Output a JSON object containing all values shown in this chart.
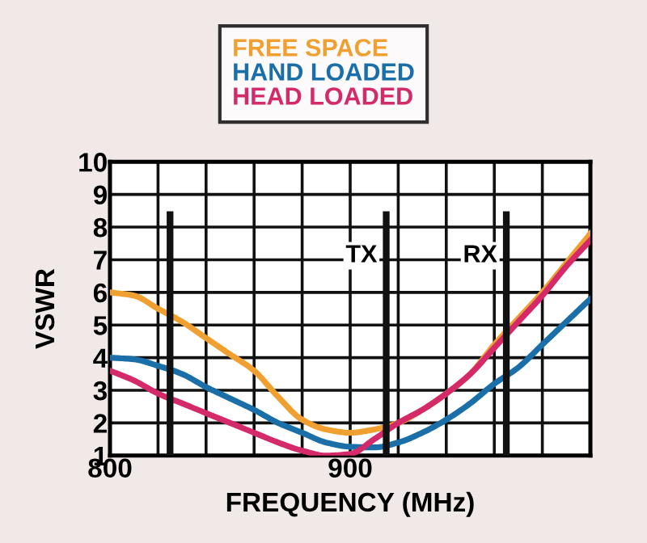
{
  "chart_data": {
    "type": "line",
    "xlabel": "FREQUENCY (MHz)",
    "ylabel": "VSWR",
    "x": [
      800,
      810,
      820,
      830,
      840,
      850,
      860,
      870,
      880,
      890,
      900,
      910,
      920,
      930,
      940,
      950,
      960,
      970,
      980,
      990,
      1000
    ],
    "series": [
      {
        "name": "FREE SPACE",
        "color": "#f0a030",
        "values": [
          6.0,
          5.9,
          5.5,
          5.1,
          4.6,
          4.1,
          3.6,
          2.8,
          2.1,
          1.8,
          1.7,
          1.8,
          2.0,
          2.4,
          2.9,
          3.5,
          4.4,
          5.2,
          6.0,
          6.9,
          7.8
        ]
      },
      {
        "name": "HAND LOADED",
        "color": "#1a6fa8",
        "values": [
          4.0,
          3.95,
          3.75,
          3.5,
          3.1,
          2.75,
          2.4,
          2.0,
          1.7,
          1.4,
          1.27,
          1.25,
          1.4,
          1.7,
          2.1,
          2.6,
          3.2,
          3.7,
          4.4,
          5.1,
          5.8
        ]
      },
      {
        "name": "HEAD LOADED",
        "color": "#d42a6a",
        "values": [
          3.6,
          3.3,
          2.9,
          2.6,
          2.3,
          2.0,
          1.7,
          1.4,
          1.15,
          1.0,
          1.05,
          1.5,
          2.0,
          2.4,
          2.9,
          3.5,
          4.3,
          5.1,
          5.9,
          6.8,
          7.6
        ]
      }
    ],
    "xlim": [
      800,
      1000
    ],
    "xticks": [
      800,
      {
        "value": 820,
        "label": null
      },
      {
        "value": 840,
        "label": null
      },
      {
        "value": 860,
        "label": null
      },
      {
        "value": 880,
        "label": null
      },
      900,
      {
        "value": 920,
        "label": null
      },
      {
        "value": 940,
        "label": null
      },
      {
        "value": 960,
        "label": null
      },
      {
        "value": 980,
        "label": null
      },
      {
        "value": 1000,
        "label": null
      }
    ],
    "ylim": [
      1,
      10
    ],
    "yticks": [
      1,
      2,
      3,
      4,
      5,
      6,
      7,
      8,
      9,
      10
    ],
    "grid": true,
    "legend": "top",
    "marker": "none",
    "line_style": "solid",
    "ref_lines": [
      {
        "axis": "x",
        "value": 825,
        "color": "#111111"
      },
      {
        "axis": "x",
        "value": 915,
        "color": "#111111",
        "label": "TX"
      },
      {
        "axis": "x",
        "value": 965,
        "color": "#111111",
        "label": "RX"
      }
    ]
  }
}
